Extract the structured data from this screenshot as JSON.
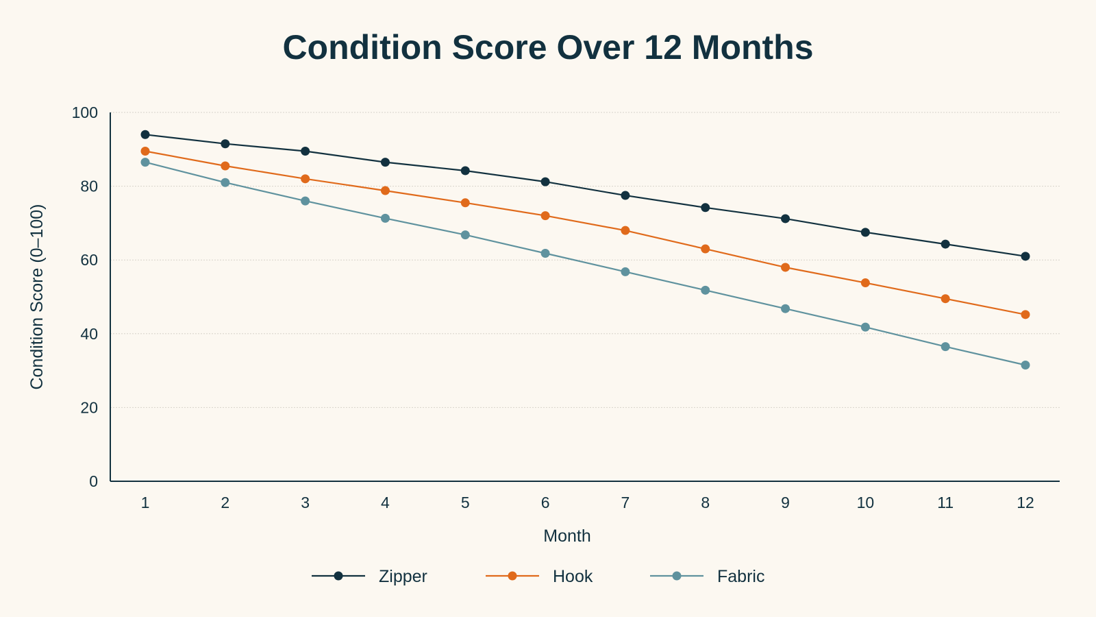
{
  "chart_data": {
    "type": "line",
    "title": "Condition Score Over 12 Months",
    "xlabel": "Month",
    "ylabel": "Condition Score (0–100)",
    "x": [
      1,
      2,
      3,
      4,
      5,
      6,
      7,
      8,
      9,
      10,
      11,
      12
    ],
    "xlim": [
      1,
      12
    ],
    "ylim": [
      0,
      100
    ],
    "yticks": [
      0,
      20,
      40,
      60,
      80,
      100
    ],
    "grid": "horizontal-dotted",
    "legend_position": "bottom-center",
    "series": [
      {
        "name": "Zipper",
        "color": "#12313f",
        "values": [
          94,
          91.5,
          89.5,
          86.5,
          84.2,
          81.2,
          77.5,
          74.2,
          71.2,
          67.5,
          64.3,
          61
        ]
      },
      {
        "name": "Hook",
        "color": "#e06a1b",
        "values": [
          89.5,
          85.5,
          82,
          78.8,
          75.5,
          72,
          68,
          63,
          58,
          53.8,
          49.5,
          45.2
        ]
      },
      {
        "name": "Fabric",
        "color": "#5f929e",
        "values": [
          86.5,
          81,
          76,
          71.3,
          66.8,
          61.8,
          56.8,
          51.8,
          46.8,
          41.8,
          36.5,
          31.5
        ]
      }
    ]
  }
}
